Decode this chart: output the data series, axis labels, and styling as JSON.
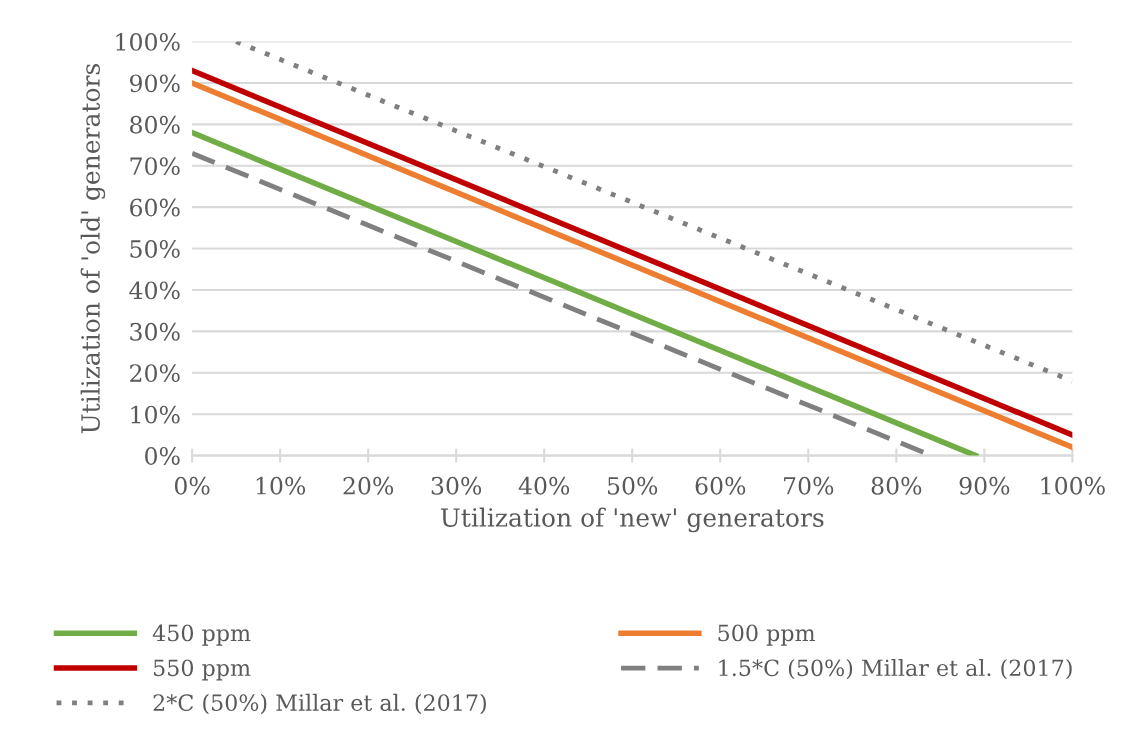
{
  "chart_data": {
    "type": "line",
    "xlabel": "Utilization of 'new' generators",
    "ylabel": "Utilization of 'old' generators",
    "series": [
      {
        "name": "450 ppm",
        "color": "#70ad47",
        "x": [
          0,
          89
        ],
        "values": [
          78,
          0
        ],
        "line_style": "solid"
      },
      {
        "name": "500 ppm",
        "color": "#ed7d31",
        "x": [
          0,
          100
        ],
        "values": [
          90,
          2
        ],
        "line_style": "solid"
      },
      {
        "name": "550 ppm",
        "color": "#c00000",
        "x": [
          0,
          100
        ],
        "values": [
          93,
          5
        ],
        "line_style": "solid"
      },
      {
        "name": "1.5*C (50%) Millar et al. (2017)",
        "color": "#808080",
        "x": [
          0,
          84
        ],
        "values": [
          73,
          0
        ],
        "line_style": "dashed"
      },
      {
        "name": "2*C (50%) Millar et al. (2017)",
        "color": "#808080",
        "x": [
          5,
          100
        ],
        "values": [
          100,
          18
        ],
        "line_style": "dotted"
      }
    ],
    "xlim": [
      0,
      100
    ],
    "ylim": [
      0,
      100
    ],
    "xticks": [
      {
        "value": 0,
        "label": "0%"
      },
      {
        "value": 10,
        "label": "10%"
      },
      {
        "value": 20,
        "label": "20%"
      },
      {
        "value": 30,
        "label": "30%"
      },
      {
        "value": 40,
        "label": "40%"
      },
      {
        "value": 50,
        "label": "50%"
      },
      {
        "value": 60,
        "label": "60%"
      },
      {
        "value": 70,
        "label": "70%"
      },
      {
        "value": 80,
        "label": "80%"
      },
      {
        "value": 90,
        "label": "90%"
      },
      {
        "value": 100,
        "label": "100%"
      }
    ],
    "yticks": [
      {
        "value": 0,
        "label": "0%"
      },
      {
        "value": 10,
        "label": "10%"
      },
      {
        "value": 20,
        "label": "20%"
      },
      {
        "value": 30,
        "label": "30%"
      },
      {
        "value": 40,
        "label": "40%"
      },
      {
        "value": 50,
        "label": "50%"
      },
      {
        "value": 60,
        "label": "60%"
      },
      {
        "value": 70,
        "label": "70%"
      },
      {
        "value": 80,
        "label": "80%"
      },
      {
        "value": 90,
        "label": "90%"
      },
      {
        "value": 100,
        "label": "100%"
      }
    ],
    "grid": "y",
    "legend": "bottom",
    "marker": "none"
  }
}
